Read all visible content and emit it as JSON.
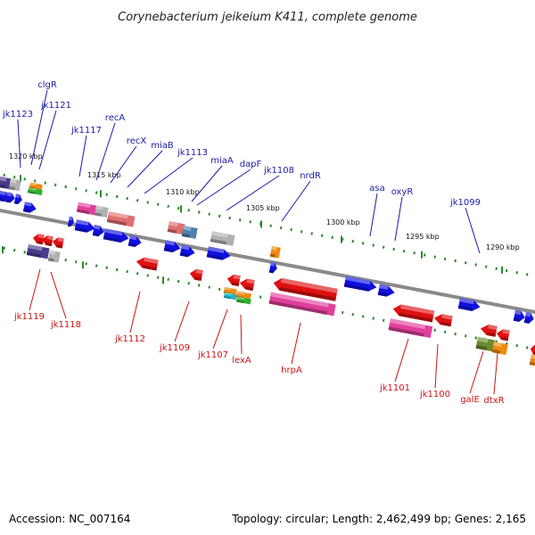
{
  "title": "Corynebacterium jeikeium K411, complete genome",
  "accession_text": "Accession: NC_007164",
  "topology_text": "Topology: circular; Length: 2,462,499 bp; Genes: 2,165",
  "colors": {
    "backbone": "#8a8a8a",
    "tick": "#2a8a2a",
    "forward_label": "#1a1aa8",
    "reverse_label": "#c81414",
    "blue_gene": "#1010e0",
    "red_gene": "#e01010",
    "pink_gene": "#e0409a",
    "salmon_gene": "#e07070",
    "grey_gene": "#b0b0b0",
    "navy_gene": "#4a3a8a",
    "orange_gene": "#f08a10",
    "green_gene": "#30b030",
    "olive_gene": "#6a8a2a",
    "cyan_gene": "#20b8c8",
    "steel_gene": "#5080b0"
  },
  "kbp_labels": [
    "1320 kbp",
    "1315 kbp",
    "1310 kbp",
    "1305 kbp",
    "1300 kbp",
    "1295 kbp",
    "1290 kbp"
  ],
  "forward_genes": [
    "clgR",
    "jk1121",
    "jk1123",
    "recA",
    "jk1117",
    "recX",
    "miaB",
    "jk1113",
    "miaA",
    "dapF",
    "jk1108",
    "nrdR",
    "asa",
    "oxyR",
    "jk1099"
  ],
  "reverse_genes": [
    "jk1119",
    "jk1118",
    "jk1112",
    "jk1109",
    "jk1107",
    "lexA",
    "hrpA",
    "jk1101",
    "jk1100",
    "galE",
    "dtxR"
  ]
}
